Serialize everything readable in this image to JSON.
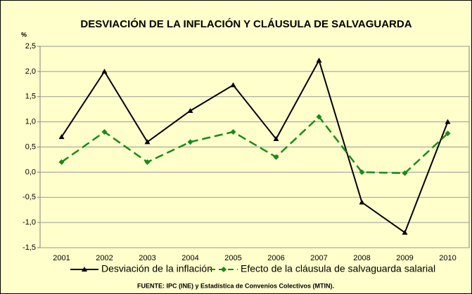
{
  "chart_data": {
    "type": "line",
    "title": "DESVIACIÓN DE LA INFLACIÓN Y CLÁUSULA DE SALVAGUARDA",
    "y_label": "%",
    "source": "FUENTE: IPC (INE) y Estadística de Convenios Colectivos (MTIN).",
    "categories": [
      "2001",
      "2002",
      "2003",
      "2004",
      "2005",
      "2006",
      "2007",
      "2008",
      "2009",
      "2010"
    ],
    "series": [
      {
        "name": "Desviación de la inflación",
        "color": "#000000",
        "values": [
          0.7,
          2.0,
          0.6,
          1.22,
          1.73,
          0.66,
          2.22,
          -0.6,
          -1.2,
          1.0
        ]
      },
      {
        "name": "Efecto de la cláusula de salvaguarda salarial",
        "color": "#1a8a1a",
        "values": [
          0.2,
          0.8,
          0.2,
          0.6,
          0.8,
          0.3,
          1.1,
          0.0,
          -0.02,
          0.77
        ]
      }
    ],
    "ylim": [
      -1.5,
      2.5
    ],
    "yticks": [
      {
        "value": -1.5,
        "label": "-1,5"
      },
      {
        "value": -1,
        "label": "-1,0"
      },
      {
        "value": -0.5,
        "label": "-0,5"
      },
      {
        "value": 0,
        "label": "0,0"
      },
      {
        "value": 0.5,
        "label": "0,5"
      },
      {
        "value": 1,
        "label": "1,0"
      },
      {
        "value": 1.5,
        "label": "1,5"
      },
      {
        "value": 2,
        "label": "2,0"
      },
      {
        "value": 2.5,
        "label": "2,5"
      }
    ],
    "grid": true
  }
}
